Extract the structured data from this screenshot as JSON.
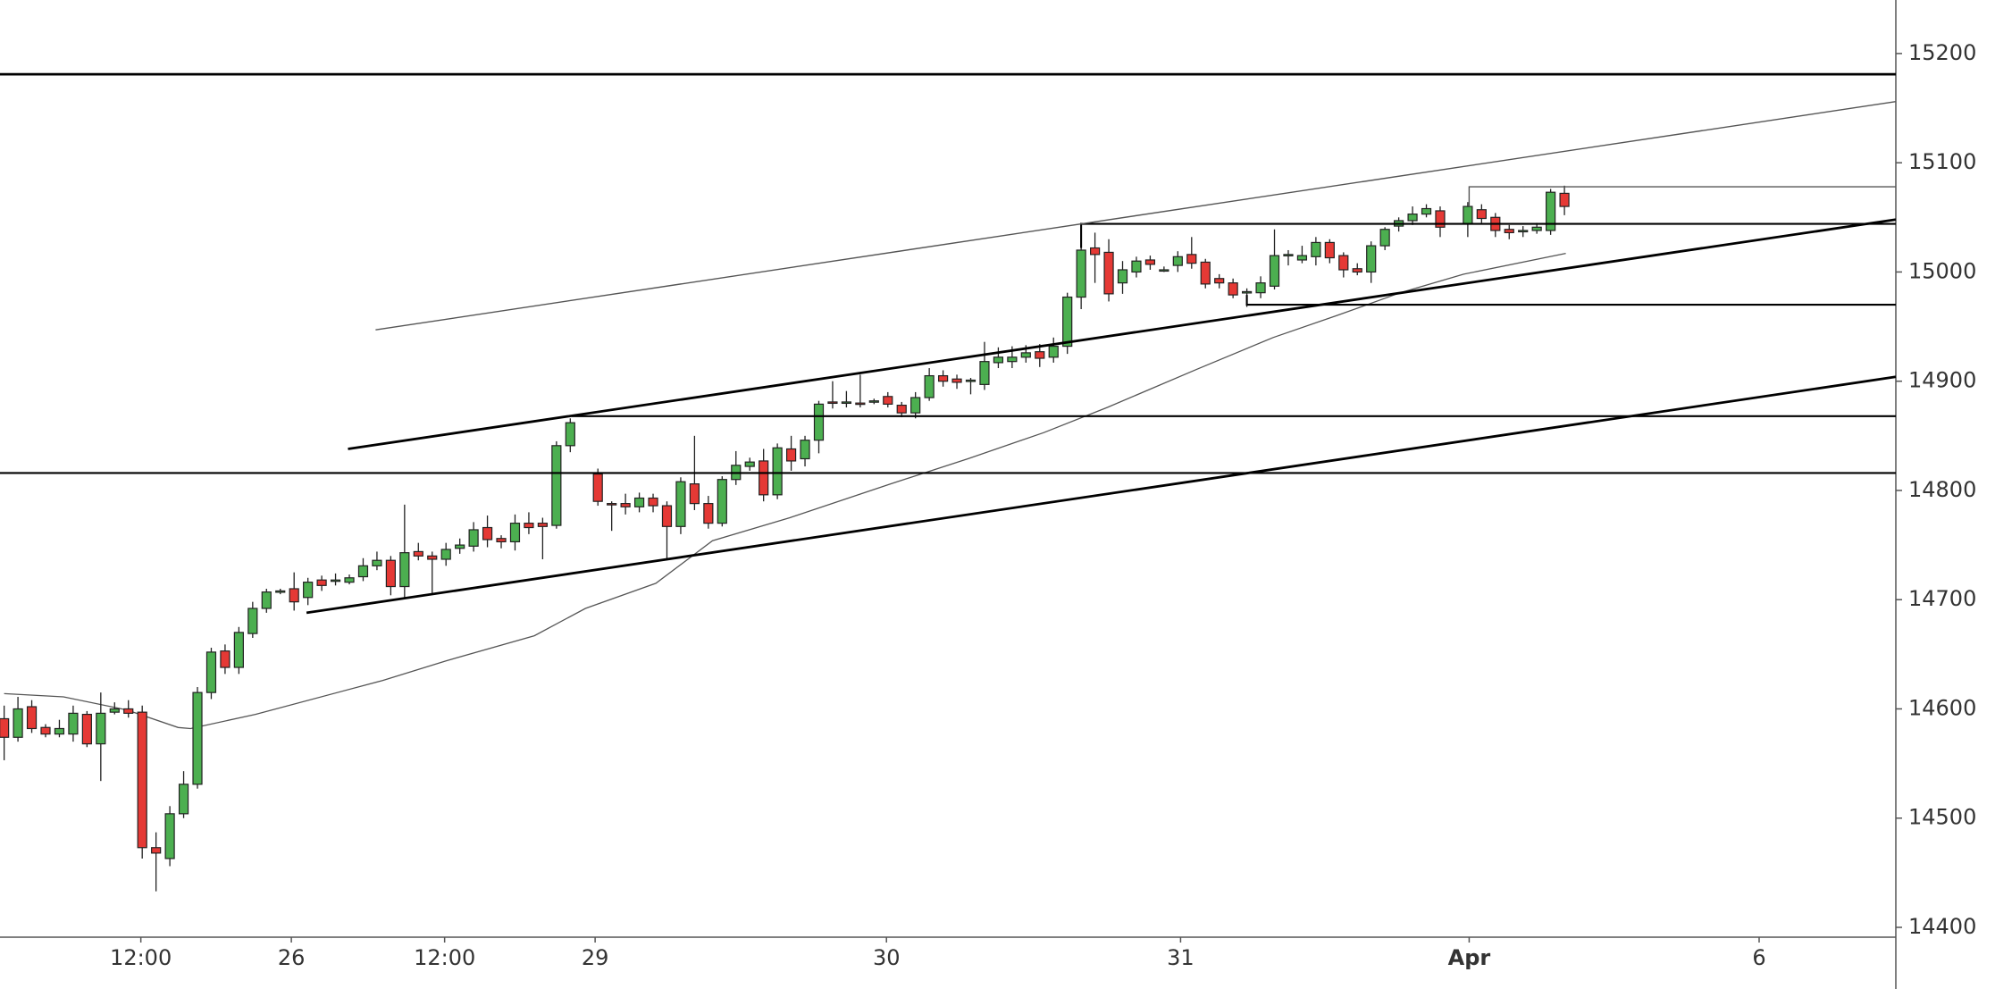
{
  "chart_data": {
    "type": "candlestick",
    "up_color": "#4caf50",
    "down_color": "#e53935",
    "outline_color": "#222222",
    "xlim": [
      -0.3,
      137
    ],
    "ylim": [
      14391,
      15249
    ],
    "yticks": [
      14400,
      14500,
      14600,
      14700,
      14800,
      14900,
      15000,
      15100,
      15200
    ],
    "xticks": [
      {
        "value": 9.9,
        "label": "12:00"
      },
      {
        "value": 20.8,
        "label": "26"
      },
      {
        "value": 31.9,
        "label": "12:00"
      },
      {
        "value": 42.8,
        "label": "29"
      },
      {
        "value": 63.9,
        "label": "30"
      },
      {
        "value": 85.2,
        "label": "31"
      },
      {
        "value": 106.1,
        "label": "Apr",
        "bold": true
      },
      {
        "value": 127.1,
        "label": "6"
      }
    ],
    "x": [
      0,
      1,
      2,
      3,
      4,
      5,
      6,
      7,
      8,
      9,
      10,
      11,
      12,
      13,
      14,
      15,
      16,
      17,
      18,
      19,
      20,
      21,
      22,
      23,
      24,
      25,
      26,
      27,
      28,
      29,
      30,
      31,
      32,
      33,
      34,
      35,
      36,
      37,
      38,
      39,
      40,
      41,
      43,
      44,
      45,
      46,
      47,
      48,
      49,
      50,
      51,
      52,
      53,
      54,
      55,
      56,
      57,
      58,
      59,
      60,
      61,
      62,
      63,
      64,
      65,
      66,
      67,
      68,
      69,
      70,
      71,
      72,
      73,
      74,
      75,
      76,
      77,
      78,
      79,
      80,
      81,
      82,
      83,
      84,
      85,
      86,
      87,
      88,
      89,
      90,
      91,
      92,
      93,
      94,
      95,
      96,
      97,
      98,
      99,
      100,
      101,
      102,
      103,
      104,
      106,
      107,
      108,
      109,
      110,
      111,
      112,
      113
    ],
    "open": [
      14591,
      14574,
      14602,
      14583,
      14577,
      14577,
      14595,
      14568,
      14597,
      14600,
      14597,
      14473,
      14463,
      14504,
      14531,
      14615,
      14653,
      14638,
      14669,
      14692,
      14707,
      14710,
      14702,
      14718,
      14717,
      14716,
      14721,
      14731,
      14736,
      14712,
      14744,
      14740,
      14737,
      14747,
      14749,
      14766,
      14756,
      14753,
      14770,
      14770,
      14768,
      14841,
      14815,
      14788,
      14788,
      14785,
      14793,
      14786,
      14767,
      14806,
      14788,
      14770,
      14810,
      14822,
      14827,
      14796,
      14838,
      14829,
      14846,
      14881,
      14880,
      14880,
      14881,
      14886,
      14878,
      14871,
      14885,
      14905,
      14902,
      14900,
      14897,
      14917,
      14918,
      14922,
      14927,
      14922,
      14932,
      14977,
      15022,
      15018,
      14990,
      15000,
      15011,
      15002,
      15006,
      15016,
      15009,
      14994,
      14990,
      14982,
      14981,
      14987,
      15015,
      15011,
      15014,
      15027,
      15015,
      15003,
      15000,
      15024,
      15042,
      15047,
      15053,
      15056,
      15044,
      15057,
      15050,
      15039,
      15038,
      15038,
      15038,
      15072
    ],
    "high": [
      14603,
      14611,
      14608,
      14586,
      14590,
      14603,
      14598,
      14615,
      14606,
      14608,
      14603,
      14487,
      14511,
      14543,
      14620,
      14656,
      14659,
      14675,
      14698,
      14710,
      14710,
      14725,
      14720,
      14722,
      14724,
      14723,
      14738,
      14744,
      14740,
      14787,
      14752,
      14744,
      14752,
      14756,
      14771,
      14777,
      14759,
      14778,
      14780,
      14775,
      14845,
      14866,
      14820,
      14790,
      14797,
      14798,
      14797,
      14790,
      14812,
      14850,
      14795,
      14813,
      14836,
      14830,
      14838,
      14843,
      14850,
      14850,
      14882,
      14900,
      14891,
      14906,
      14884,
      14890,
      14881,
      14890,
      14912,
      14910,
      14906,
      14903,
      14936,
      14931,
      14932,
      14933,
      14934,
      14940,
      14981,
      15044,
      15036,
      15030,
      15010,
      15014,
      15015,
      15005,
      15019,
      15032,
      15012,
      14998,
      14994,
      14985,
      14996,
      15039,
      15020,
      15024,
      15032,
      15030,
      15018,
      15008,
      15028,
      15041,
      15050,
      15060,
      15062,
      15060,
      15064,
      15062,
      15054,
      15043,
      15042,
      15045,
      15076,
      15079
    ],
    "low": [
      14553,
      14570,
      14578,
      14574,
      14574,
      14570,
      14565,
      14534,
      14595,
      14592,
      14463,
      14433,
      14456,
      14500,
      14527,
      14609,
      14632,
      14632,
      14665,
      14688,
      14705,
      14690,
      14695,
      14708,
      14713,
      14714,
      14717,
      14727,
      14704,
      14701,
      14736,
      14706,
      14731,
      14742,
      14744,
      14748,
      14747,
      14745,
      14760,
      14737,
      14765,
      14835,
      14786,
      14763,
      14778,
      14780,
      14780,
      14737,
      14760,
      14782,
      14765,
      14767,
      14805,
      14818,
      14790,
      14792,
      14818,
      14822,
      14834,
      14875,
      14876,
      14876,
      14879,
      14876,
      14867,
      14866,
      14882,
      14895,
      14893,
      14888,
      14892,
      14912,
      14912,
      14917,
      14913,
      14917,
      14925,
      14966,
      14990,
      14973,
      14980,
      14995,
      15002,
      15000,
      15000,
      15003,
      14985,
      14985,
      14976,
      14968,
      14976,
      14984,
      15006,
      15008,
      15006,
      15008,
      14995,
      14997,
      14990,
      15020,
      15037,
      15043,
      15050,
      15032,
      15032,
      15045,
      15032,
      15030,
      15032,
      15035,
      15034,
      15052
    ],
    "close": [
      14574,
      14600,
      14582,
      14577,
      14582,
      14596,
      14568,
      14596,
      14600,
      14596,
      14473,
      14468,
      14504,
      14531,
      14615,
      14652,
      14638,
      14670,
      14692,
      14707,
      14708,
      14698,
      14716,
      14713,
      14718,
      14720,
      14731,
      14736,
      14712,
      14743,
      14740,
      14737,
      14746,
      14750,
      14764,
      14755,
      14753,
      14770,
      14766,
      14767,
      14841,
      14862,
      14790,
      14787,
      14785,
      14793,
      14786,
      14767,
      14808,
      14788,
      14770,
      14810,
      14823,
      14826,
      14796,
      14839,
      14827,
      14846,
      14879,
      14880,
      14881,
      14879,
      14882,
      14879,
      14871,
      14885,
      14905,
      14900,
      14899,
      14901,
      14918,
      14922,
      14922,
      14926,
      14921,
      14932,
      14977,
      15020,
      15016,
      14980,
      15002,
      15010,
      15007,
      15002,
      15014,
      15008,
      14989,
      14990,
      14979,
      14982,
      14990,
      15015,
      15016,
      15015,
      15027,
      15013,
      15002,
      15000,
      15024,
      15039,
      15047,
      15053,
      15058,
      15041,
      15060,
      15049,
      15038,
      15036,
      15038,
      15041,
      15073,
      15060
    ],
    "ma": {
      "color": "#555555",
      "x": [
        0,
        4.3,
        8.9,
        12.6,
        13.5,
        18.2,
        27.4,
        32.0,
        38.4,
        42.1,
        47.2,
        51.3,
        56.9,
        64.2,
        69.8,
        75.3,
        79.9,
        86.4,
        91.9,
        96.5,
        101.1,
        105.7,
        113.1
      ],
      "values": [
        14614,
        14611,
        14599,
        14583,
        14582,
        14595,
        14626,
        14644,
        14667,
        14692,
        14715,
        14754,
        14775,
        14806,
        14829,
        14853,
        14876,
        14911,
        14940,
        14960,
        14981,
        14998,
        15017
      ]
    },
    "lines": [
      {
        "color": "#000000",
        "width": 2,
        "x": [
          -0.3,
          137
        ],
        "y": [
          15181,
          15181
        ]
      },
      {
        "color": "#000000",
        "width": 1.5,
        "x": [
          -0.3,
          137
        ],
        "y": [
          14816,
          14816
        ]
      },
      {
        "color": "#000000",
        "width": 1.5,
        "x": [
          41.1,
          137
        ],
        "y": [
          14868,
          14868
        ]
      },
      {
        "color": "#000000",
        "width": 1.5,
        "x": [
          90,
          90,
          137
        ],
        "y": [
          14979,
          14970,
          14970
        ]
      },
      {
        "color": "#000000",
        "width": 1.5,
        "x": [
          78,
          78,
          137
        ],
        "y": [
          15022,
          15044,
          15044
        ]
      },
      {
        "color": "#555555",
        "width": 1,
        "x": [
          106.1,
          106.1,
          137
        ],
        "y": [
          15060,
          15078,
          15078
        ]
      },
      {
        "color": "#555555",
        "width": 1,
        "x": [
          26.9,
          137
        ],
        "y": [
          14947,
          15156
        ]
      },
      {
        "color": "#000000",
        "width": 2,
        "x": [
          24.9,
          137
        ],
        "y": [
          14838,
          15048
        ]
      },
      {
        "color": "#000000",
        "width": 2,
        "x": [
          21.9,
          137
        ],
        "y": [
          14688,
          14904
        ]
      }
    ]
  }
}
